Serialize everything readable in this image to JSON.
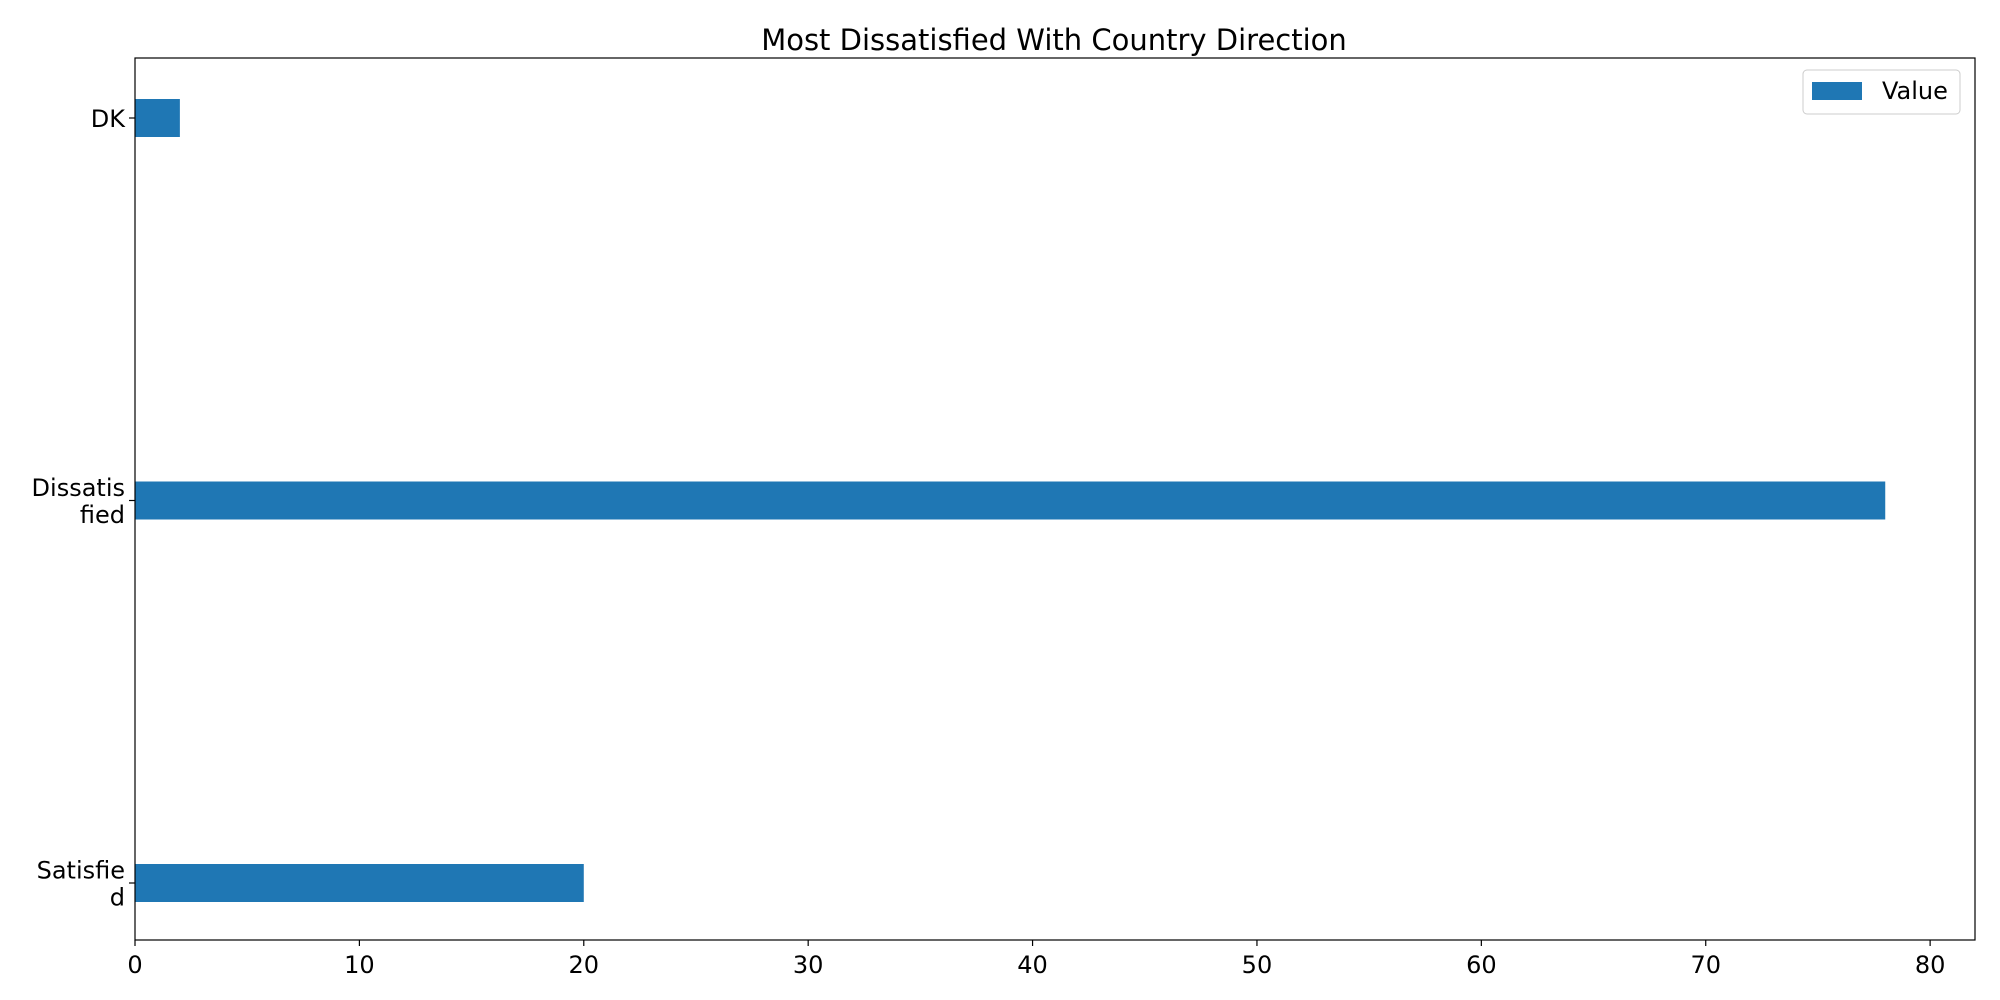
{
  "chart_data": {
    "type": "bar",
    "orientation": "horizontal",
    "title": "Most Dissatisfied With Country Direction",
    "xlabel": "",
    "ylabel": "",
    "categories": [
      "DK",
      "Dissatisfied",
      "Satisfied"
    ],
    "category_tick_labels": [
      [
        "DK"
      ],
      [
        "Dissatis",
        "fied"
      ],
      [
        "Satisfie",
        "d"
      ]
    ],
    "series": [
      {
        "name": "Value",
        "values": [
          2,
          78,
          20
        ],
        "color": "#1f77b4"
      }
    ],
    "xlim": [
      0,
      82
    ],
    "x_ticks": [
      0,
      10,
      20,
      30,
      40,
      50,
      60,
      70,
      80
    ],
    "grid": false,
    "legend_position": "top-right"
  }
}
